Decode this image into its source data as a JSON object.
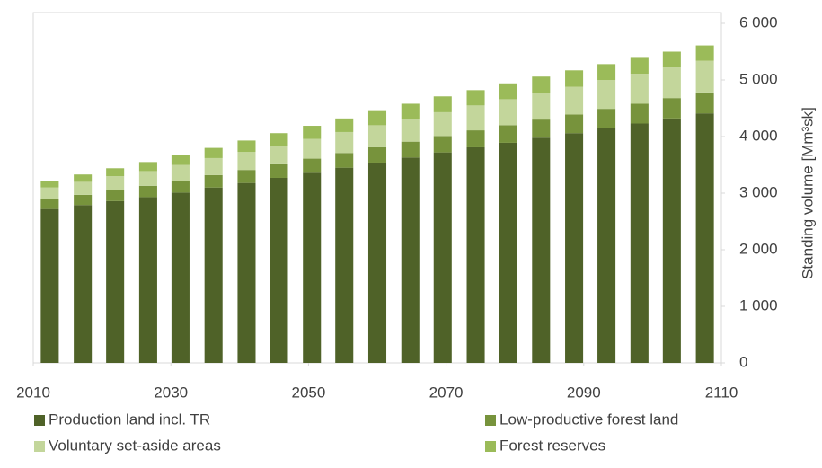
{
  "chart_data": {
    "type": "stacked_bar",
    "y_axis_label": "Standing volume [Mm³sk]",
    "x": [
      2012.4,
      2017.2,
      2021.9,
      2026.7,
      2031.4,
      2036.2,
      2041.0,
      2045.7,
      2050.5,
      2055.2,
      2060.0,
      2064.8,
      2069.5,
      2074.3,
      2079.0,
      2083.8,
      2088.6,
      2093.3,
      2098.1,
      2102.8,
      2107.6
    ],
    "series": [
      {
        "name": "Production land incl. TR",
        "color": "#4f6228",
        "values": [
          2720,
          2790,
          2860,
          2930,
          3010,
          3100,
          3180,
          3270,
          3360,
          3450,
          3540,
          3630,
          3720,
          3810,
          3890,
          3980,
          4060,
          4150,
          4230,
          4320,
          4410
        ]
      },
      {
        "name": "Low-productive forest land",
        "color": "#77933c",
        "values": [
          170,
          180,
          190,
          200,
          210,
          220,
          230,
          240,
          250,
          260,
          270,
          280,
          290,
          300,
          310,
          320,
          330,
          340,
          350,
          360,
          370
        ]
      },
      {
        "name": "Voluntary set-aside areas",
        "color": "#c3d69b",
        "values": [
          210,
          230,
          250,
          260,
          280,
          300,
          320,
          330,
          350,
          370,
          390,
          400,
          420,
          440,
          460,
          470,
          490,
          510,
          530,
          540,
          560
        ]
      },
      {
        "name": "Forest reserves",
        "color": "#9bbb59",
        "values": [
          120,
          130,
          140,
          160,
          180,
          180,
          200,
          220,
          230,
          240,
          250,
          270,
          280,
          270,
          280,
          290,
          290,
          280,
          280,
          280,
          270
        ]
      }
    ],
    "xlim": [
      2010,
      2110
    ],
    "xticks": [
      2010,
      2030,
      2050,
      2070,
      2090,
      2110
    ],
    "ylim": [
      0,
      6000
    ],
    "yticks": [
      0,
      {
        "value": 1000,
        "label": "1 000"
      },
      {
        "value": 2000,
        "label": "2 000"
      },
      {
        "value": 3000,
        "label": "3 000"
      },
      {
        "value": 4000,
        "label": "4 000"
      },
      {
        "value": 5000,
        "label": "5 000"
      },
      {
        "value": 6000,
        "label": "6 000"
      }
    ],
    "y_axis_side": "right",
    "legend": "bottom"
  }
}
